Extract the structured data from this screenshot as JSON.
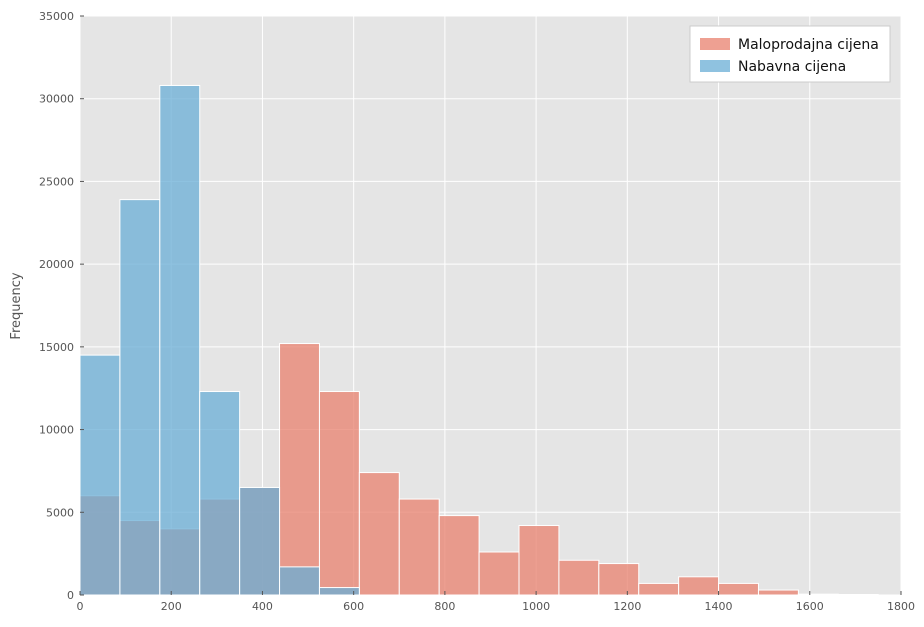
{
  "chart_data": {
    "type": "bar",
    "title": "",
    "xlabel": "",
    "ylabel": "Frequency",
    "xlim": [
      0,
      1800
    ],
    "ylim": [
      0,
      35000
    ],
    "xticks": [
      0,
      200,
      400,
      600,
      800,
      1000,
      1200,
      1400,
      1600,
      1800
    ],
    "yticks": [
      0,
      5000,
      10000,
      15000,
      20000,
      25000,
      30000,
      35000
    ],
    "grid": true,
    "legend_position": "top-right",
    "bin_edges": [
      0,
      87.5,
      175,
      262.5,
      350,
      437.5,
      525,
      612.5,
      700,
      787.5,
      875,
      962.5,
      1050,
      1137.5,
      1225,
      1312.5,
      1400,
      1487.5,
      1575,
      1662.5,
      1750
    ],
    "series": [
      {
        "name": "Maloprodajna cijena",
        "color": "#E8806E",
        "values": [
          6000,
          4500,
          4000,
          5800,
          6500,
          15200,
          12300,
          7400,
          5800,
          4800,
          2600,
          4200,
          2100,
          1900,
          700,
          1100,
          700,
          300,
          50,
          30
        ]
      },
      {
        "name": "Nabavna cijena",
        "color": "#6AAED6",
        "values": [
          14500,
          23900,
          30800,
          12300,
          6500,
          1700,
          450,
          0,
          0,
          0,
          0,
          0,
          0,
          0,
          0,
          0,
          0,
          0,
          0,
          0
        ]
      }
    ]
  }
}
